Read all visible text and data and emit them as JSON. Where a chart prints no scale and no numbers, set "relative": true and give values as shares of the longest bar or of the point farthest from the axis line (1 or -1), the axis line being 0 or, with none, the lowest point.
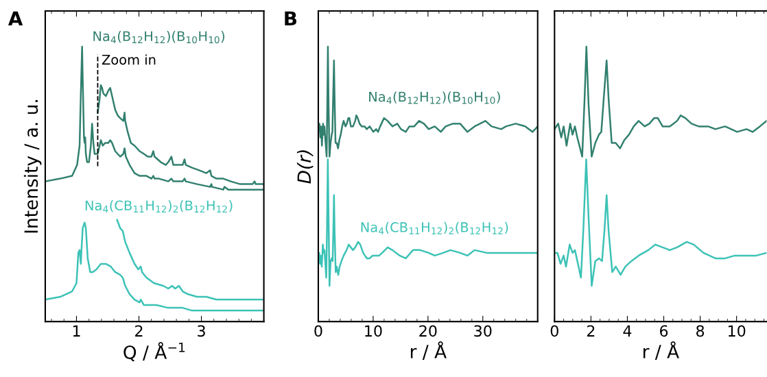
{
  "chart_data": [
    {
      "type": "line",
      "title": "A",
      "xlabel": "Q / Å$^{−1}$",
      "ylabel": "Intensity / a. u.",
      "relative": true,
      "xlim": [
        0.5,
        4.0
      ],
      "xticks": [
        1,
        2,
        3
      ],
      "legend": false,
      "ref_lines": [
        {
          "axis": "x",
          "value": 1.34,
          "label": "Zoom in",
          "line_style": "dashed",
          "color": "#000000"
        }
      ],
      "series": [
        {
          "name": "Na$_{4}$(B$_{12}$H$_{12}$)(B$_{10}$H$_{10}$)",
          "color": "#32806f",
          "x": [
            0.5,
            0.74,
            0.93,
            1.01,
            1.05,
            1.07,
            1.09,
            1.1,
            1.12,
            1.13,
            1.14,
            1.15,
            1.17,
            1.2,
            1.23,
            1.25,
            1.27,
            1.29,
            1.32,
            1.34,
            1.36,
            1.39,
            1.42,
            1.46,
            1.51,
            1.54,
            1.57,
            1.62,
            1.7,
            1.75,
            1.77,
            1.79,
            1.85,
            1.93,
            2.01,
            2.12,
            2.2,
            2.23,
            2.25,
            2.32,
            2.47,
            2.52,
            2.55,
            2.7,
            2.73,
            2.75,
            2.93,
            3.14,
            3.16,
            3.17,
            3.35,
            3.37,
            3.43,
            3.62,
            3.85,
            4.0
          ],
          "values": [
            0.51,
            0.52,
            0.53,
            0.57,
            0.64,
            0.83,
            1.0,
            0.88,
            0.67,
            0.65,
            0.67,
            0.61,
            0.58,
            0.58,
            0.64,
            0.72,
            0.65,
            0.61,
            0.61,
            0.61,
            0.63,
            0.66,
            0.64,
            0.65,
            0.65,
            0.66,
            0.65,
            0.62,
            0.6,
            0.61,
            0.63,
            0.6,
            0.57,
            0.54,
            0.53,
            0.53,
            0.52,
            0.53,
            0.52,
            0.52,
            0.51,
            0.52,
            0.51,
            0.51,
            0.52,
            0.51,
            0.5,
            0.49,
            0.5,
            0.49,
            0.48,
            0.49,
            0.48,
            0.48,
            0.48,
            0.48
          ]
        },
        {
          "color": "#32806f",
          "x": [
            1.34,
            1.37,
            1.39,
            1.41,
            1.43,
            1.47,
            1.51,
            1.54,
            1.55,
            1.58,
            1.62,
            1.66,
            1.7,
            1.75,
            1.77,
            1.78,
            1.82,
            1.87,
            1.93,
            2.01,
            2.08,
            2.14,
            2.2,
            2.23,
            2.25,
            2.3,
            2.35,
            2.43,
            2.47,
            2.52,
            2.55,
            2.62,
            2.7,
            2.73,
            2.75,
            2.85,
            2.97,
            3.08,
            3.14,
            3.16,
            3.24,
            3.35,
            3.47,
            3.62,
            3.82,
            3.85,
            3.87,
            4.0
          ],
          "values": [
            0.76,
            0.81,
            0.86,
            0.85,
            0.83,
            0.82,
            0.84,
            0.85,
            0.84,
            0.81,
            0.77,
            0.75,
            0.74,
            0.73,
            0.76,
            0.73,
            0.69,
            0.65,
            0.64,
            0.62,
            0.61,
            0.6,
            0.6,
            0.62,
            0.6,
            0.59,
            0.58,
            0.57,
            0.58,
            0.6,
            0.57,
            0.57,
            0.57,
            0.59,
            0.57,
            0.56,
            0.55,
            0.54,
            0.55,
            0.53,
            0.52,
            0.52,
            0.51,
            0.5,
            0.5,
            0.51,
            0.5,
            0.5
          ]
        },
        {
          "name": "Na$_{4}$(CB$_{11}$H$_{12}$)$_{2}$(B$_{12}$H$_{12}$)",
          "color": "#3cc2b6",
          "x": [
            0.5,
            0.74,
            0.93,
            1.0,
            1.03,
            1.05,
            1.07,
            1.08,
            1.1,
            1.13,
            1.15,
            1.18,
            1.22,
            1.26,
            1.32,
            1.39,
            1.47,
            1.55,
            1.62,
            1.7,
            1.74,
            1.78,
            1.85,
            1.93,
            2.01,
            2.03,
            2.08,
            2.28,
            2.47,
            2.7,
            2.85,
            3.24,
            3.62,
            4.0
          ],
          "values": [
            0.08,
            0.09,
            0.11,
            0.14,
            0.25,
            0.26,
            0.21,
            0.26,
            0.34,
            0.36,
            0.34,
            0.23,
            0.18,
            0.18,
            0.19,
            0.21,
            0.21,
            0.2,
            0.18,
            0.17,
            0.16,
            0.13,
            0.1,
            0.08,
            0.07,
            0.08,
            0.06,
            0.06,
            0.05,
            0.05,
            0.04,
            0.04,
            0.04,
            0.04
          ]
        },
        {
          "color": "#3cc2b6",
          "x": [
            1.65,
            1.7,
            1.74,
            1.78,
            1.85,
            1.93,
            1.99,
            2.03,
            2.05,
            2.12,
            2.24,
            2.39,
            2.47,
            2.53,
            2.58,
            2.64,
            2.7,
            2.78,
            2.93,
            3.08,
            3.24,
            3.43,
            3.62,
            3.82,
            4.0
          ],
          "values": [
            0.37,
            0.34,
            0.33,
            0.29,
            0.25,
            0.21,
            0.19,
            0.2,
            0.18,
            0.16,
            0.14,
            0.13,
            0.12,
            0.13,
            0.12,
            0.13,
            0.11,
            0.1,
            0.09,
            0.09,
            0.08,
            0.08,
            0.08,
            0.08,
            0.08
          ]
        }
      ]
    },
    {
      "type": "line",
      "title": "B",
      "xlabel": "r / Å",
      "ylabel": "D(r)",
      "relative": true,
      "xlim": [
        0,
        40
      ],
      "xticks": [
        0,
        10,
        20,
        30
      ],
      "legend": false,
      "series": [
        {
          "name": "Na$_{4}$(B$_{12}$H$_{12}$)(B$_{10}$H$_{10}$)",
          "color": "#32806f",
          "x": [
            0,
            0.2,
            0.37,
            0.5,
            0.66,
            0.86,
            0.99,
            1.12,
            1.25,
            1.52,
            1.65,
            1.75,
            1.87,
            2.04,
            2.24,
            2.44,
            2.57,
            2.7,
            2.86,
            2.97,
            3.14,
            3.36,
            3.6,
            3.83,
            4.09,
            4.35,
            4.62,
            4.95,
            5.21,
            5.47,
            5.67,
            5.94,
            6.2,
            6.33,
            6.53,
            6.73,
            6.93,
            7.19,
            7.52,
            7.92,
            8.44,
            8.84,
            9.37,
            10.03,
            10.55,
            10.88,
            11.28,
            11.98,
            12.64,
            13.52,
            14.41,
            15.07,
            15.95,
            16.61,
            17.49,
            18.37,
            19.25,
            20.13,
            21.23,
            22.34,
            23.22,
            24.54,
            25.86,
            27.18,
            28.5,
            30.48,
            31.59,
            33.35,
            34.23,
            35.99,
            37.75,
            39.07,
            40
          ],
          "values": [
            0.7,
            0.72,
            0.67,
            0.71,
            0.64,
            0.72,
            0.68,
            0.71,
            0.67,
            0.6,
            0.81,
            1.0,
            0.79,
            0.6,
            0.65,
            0.68,
            0.69,
            0.81,
            0.95,
            0.81,
            0.65,
            0.65,
            0.63,
            0.66,
            0.68,
            0.71,
            0.73,
            0.71,
            0.72,
            0.74,
            0.74,
            0.71,
            0.71,
            0.71,
            0.72,
            0.73,
            0.75,
            0.74,
            0.72,
            0.71,
            0.71,
            0.7,
            0.71,
            0.69,
            0.7,
            0.69,
            0.71,
            0.74,
            0.73,
            0.71,
            0.72,
            0.7,
            0.69,
            0.71,
            0.71,
            0.73,
            0.72,
            0.7,
            0.71,
            0.69,
            0.71,
            0.72,
            0.72,
            0.69,
            0.71,
            0.73,
            0.71,
            0.7,
            0.71,
            0.72,
            0.71,
            0.69,
            0.71
          ]
        },
        {
          "name": "Na$_{4}$(CB$_{11}$H$_{12}$)$_{2}$(B$_{12}$H$_{12}$)",
          "color": "#3cc2b6",
          "x": [
            0,
            0.16,
            0.33,
            0.5,
            0.63,
            0.83,
            0.99,
            1.12,
            1.32,
            1.45,
            1.58,
            1.74,
            1.87,
            2.04,
            2.24,
            2.44,
            2.61,
            2.74,
            2.86,
            2.97,
            3.17,
            3.36,
            3.63,
            3.89,
            4.22,
            4.62,
            5.15,
            5.54,
            5.94,
            6.33,
            6.73,
            7.26,
            7.65,
            8.18,
            8.84,
            9.37,
            9.89,
            10.42,
            11.08,
            11.65,
            12.64,
            13.52,
            14.85,
            15.95,
            17.27,
            18.59,
            20.13,
            21.23,
            22.78,
            24.1,
            25.86,
            27.18,
            28.5,
            30.7,
            33.35,
            35.99,
            40
          ],
          "values": [
            0.25,
            0.25,
            0.21,
            0.24,
            0.2,
            0.28,
            0.25,
            0.26,
            0.2,
            0.16,
            0.33,
            0.59,
            0.38,
            0.13,
            0.22,
            0.23,
            0.22,
            0.33,
            0.46,
            0.33,
            0.18,
            0.2,
            0.17,
            0.2,
            0.22,
            0.24,
            0.26,
            0.28,
            0.27,
            0.26,
            0.27,
            0.29,
            0.28,
            0.25,
            0.23,
            0.23,
            0.24,
            0.24,
            0.24,
            0.25,
            0.27,
            0.26,
            0.24,
            0.23,
            0.26,
            0.26,
            0.25,
            0.24,
            0.25,
            0.26,
            0.25,
            0.24,
            0.26,
            0.25,
            0.25,
            0.25,
            0.25
          ]
        }
      ]
    },
    {
      "type": "line",
      "xlabel": "r / Å",
      "relative": true,
      "xlim": [
        0,
        11.65
      ],
      "xticks": [
        0,
        2,
        4,
        6,
        8,
        10
      ],
      "legend": false,
      "series": [
        {
          "color": "#32806f",
          "x": [
            0,
            0.2,
            0.37,
            0.5,
            0.66,
            0.86,
            0.99,
            1.12,
            1.25,
            1.52,
            1.65,
            1.75,
            1.87,
            2.04,
            2.24,
            2.44,
            2.57,
            2.7,
            2.86,
            2.97,
            3.14,
            3.36,
            3.6,
            3.83,
            4.09,
            4.35,
            4.62,
            4.95,
            5.21,
            5.47,
            5.67,
            5.94,
            6.2,
            6.33,
            6.53,
            6.73,
            6.93,
            7.19,
            7.52,
            7.92,
            8.44,
            8.84,
            9.37,
            10.03,
            10.55,
            10.88,
            11.28,
            11.65
          ],
          "values": [
            0.7,
            0.72,
            0.67,
            0.71,
            0.64,
            0.72,
            0.68,
            0.71,
            0.67,
            0.6,
            0.81,
            1.0,
            0.79,
            0.6,
            0.65,
            0.68,
            0.69,
            0.81,
            0.95,
            0.81,
            0.65,
            0.65,
            0.63,
            0.66,
            0.68,
            0.71,
            0.73,
            0.71,
            0.72,
            0.74,
            0.74,
            0.71,
            0.71,
            0.71,
            0.72,
            0.73,
            0.75,
            0.74,
            0.72,
            0.71,
            0.71,
            0.7,
            0.71,
            0.69,
            0.7,
            0.69,
            0.71,
            0.73
          ]
        },
        {
          "color": "#3cc2b6",
          "x": [
            0,
            0.16,
            0.33,
            0.5,
            0.63,
            0.83,
            0.99,
            1.12,
            1.32,
            1.45,
            1.58,
            1.74,
            1.87,
            2.04,
            2.24,
            2.44,
            2.61,
            2.74,
            2.86,
            2.97,
            3.17,
            3.36,
            3.63,
            3.89,
            4.22,
            4.62,
            5.15,
            5.54,
            5.94,
            6.33,
            6.73,
            7.26,
            7.65,
            8.18,
            8.84,
            9.37,
            9.89,
            10.42,
            11.08,
            11.65
          ],
          "values": [
            0.25,
            0.25,
            0.21,
            0.24,
            0.2,
            0.28,
            0.25,
            0.26,
            0.2,
            0.16,
            0.33,
            0.59,
            0.38,
            0.13,
            0.22,
            0.23,
            0.22,
            0.33,
            0.46,
            0.33,
            0.18,
            0.2,
            0.17,
            0.2,
            0.22,
            0.24,
            0.26,
            0.28,
            0.27,
            0.26,
            0.27,
            0.29,
            0.28,
            0.25,
            0.23,
            0.23,
            0.24,
            0.24,
            0.24,
            0.25
          ]
        }
      ]
    }
  ]
}
